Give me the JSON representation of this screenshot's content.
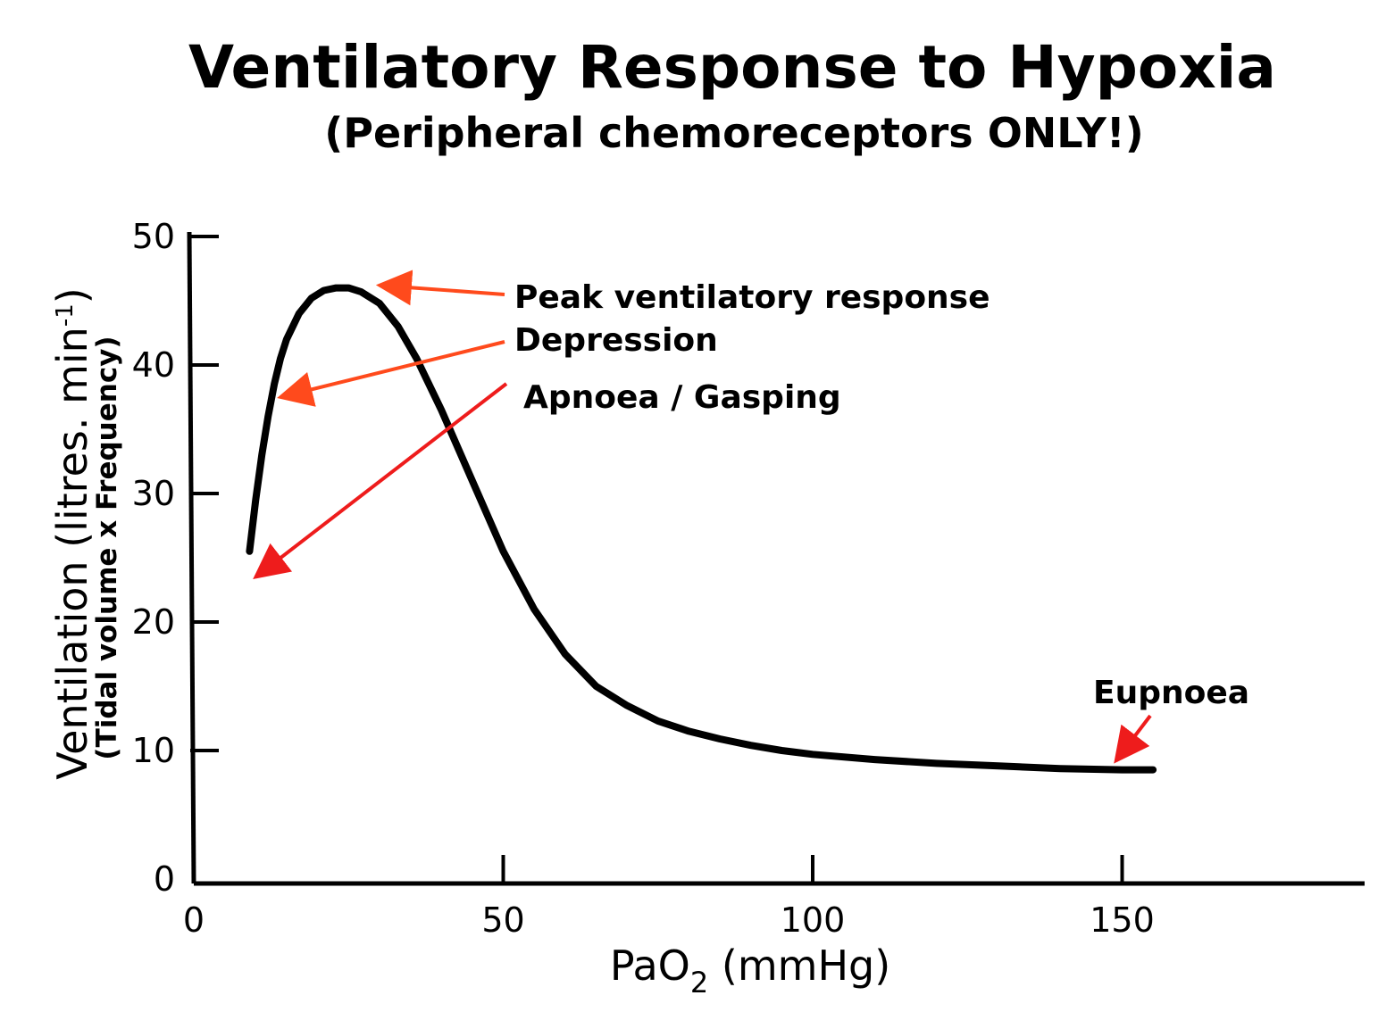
{
  "chart_data": {
    "type": "line",
    "title": "Ventilatory Response to Hypoxia",
    "subtitle": "(Peripheral chemoreceptors ONLY!)",
    "xlabel": {
      "prefix": "PaO",
      "subscript": "2",
      "suffix": " (mmHg)"
    },
    "ylabel": {
      "line1_prefix": "Ventilation (litres. min",
      "line1_sup": "-1",
      "line1_suffix": ")",
      "line2": "(Tidal volume  x  Frequency)"
    },
    "xlim": [
      0,
      190
    ],
    "ylim": [
      0,
      50
    ],
    "x_ticks": [
      0,
      50,
      100,
      150
    ],
    "y_ticks": [
      0,
      10,
      20,
      30,
      40,
      50
    ],
    "grid": false,
    "series": [
      {
        "x": [
          9,
          10,
          11,
          12,
          13,
          14,
          15,
          17,
          19,
          21,
          23,
          25,
          27,
          30,
          33,
          36,
          40,
          45,
          50,
          55,
          60,
          65,
          70,
          75,
          80,
          85,
          90,
          95,
          100,
          110,
          120,
          130,
          140,
          150,
          155
        ],
        "y": [
          25.5,
          29.5,
          33,
          36,
          38.5,
          40.5,
          42,
          44,
          45.2,
          45.8,
          46,
          46,
          45.7,
          44.8,
          43,
          40.5,
          36.5,
          31,
          25.5,
          21,
          17.5,
          15,
          13.5,
          12.3,
          11.5,
          10.9,
          10.4,
          10.0,
          9.7,
          9.3,
          9.0,
          8.8,
          8.6,
          8.5,
          8.5
        ]
      }
    ],
    "annotations": [
      {
        "text": "Peak ventilatory response",
        "target": [
          30,
          46.2
        ],
        "color": "#ff4a1c"
      },
      {
        "text": "Depression",
        "target": [
          14,
          37.5
        ],
        "color": "#ff4a1c"
      },
      {
        "text": "Apnoea / Gasping",
        "target": [
          10,
          23.5
        ],
        "color": "#ee1c1c"
      },
      {
        "text": "Eupnoea",
        "target": [
          149,
          9.2
        ],
        "color": "#ee1c1c"
      }
    ]
  }
}
